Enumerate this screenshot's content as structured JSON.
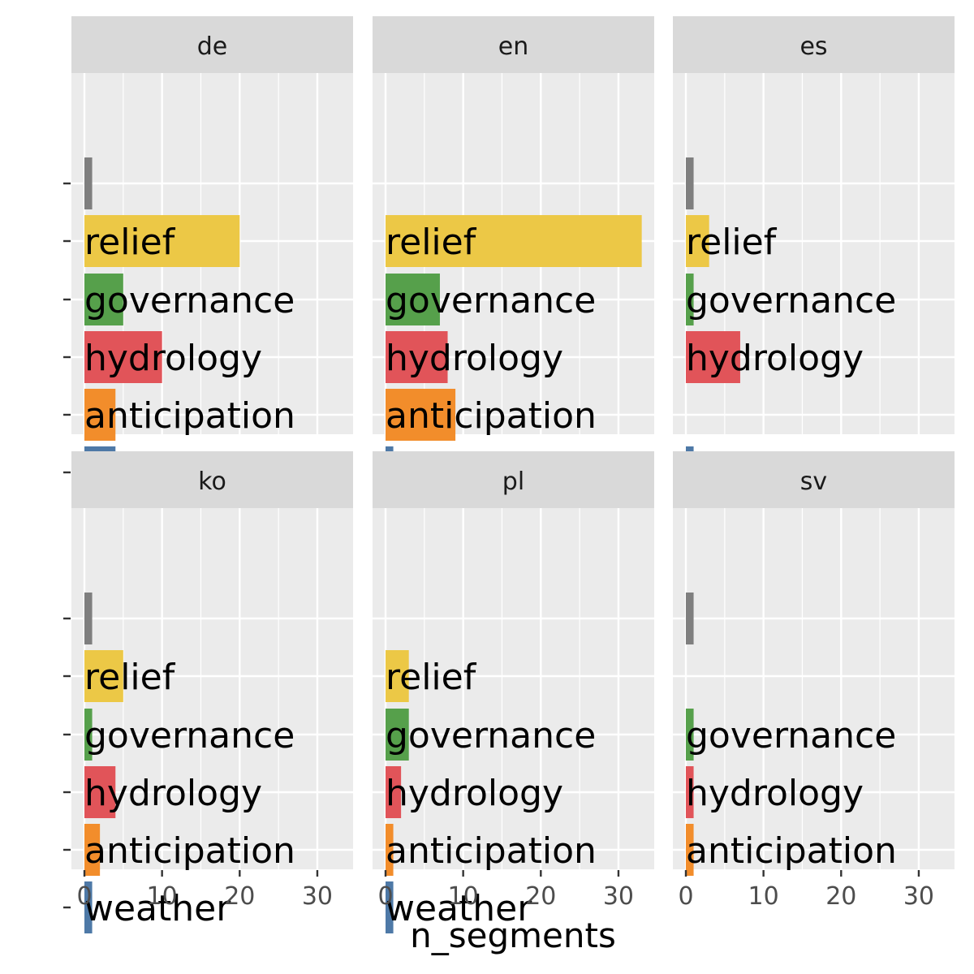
{
  "chart_data": {
    "type": "bar",
    "orientation": "horizontal",
    "facet_layout": "2 rows x 3 columns",
    "xlabel": "n_segments",
    "ylabel": "",
    "xlim": [
      -1.7,
      34.9
    ],
    "x_ticks": [
      0,
      10,
      20,
      30
    ],
    "x_tick_labels": [
      "0",
      "10",
      "20",
      "30"
    ],
    "grid": true,
    "legend": "none",
    "categories": [
      "",
      "relief",
      "governance",
      "hydrology",
      "anticipation",
      "weather"
    ],
    "y_tick_labels": [
      "",
      "",
      "",
      "",
      "",
      ""
    ],
    "colors": {
      "": "#7f7f7f",
      "relief": "#ecc846",
      "governance": "#56a04b",
      "hydrology": "#e15459",
      "anticipation": "#f28d2b",
      "weather": "#4e79a7"
    },
    "facets": [
      {
        "label": "de",
        "values": [
          1,
          20,
          5,
          10,
          4,
          4
        ]
      },
      {
        "label": "en",
        "values": [
          null,
          33,
          7,
          8,
          9,
          1
        ]
      },
      {
        "label": "es",
        "values": [
          1,
          3,
          1,
          7,
          null,
          1
        ]
      },
      {
        "label": "ko",
        "values": [
          1,
          5,
          1,
          4,
          2,
          1
        ]
      },
      {
        "label": "pl",
        "values": [
          null,
          3,
          3,
          2,
          1,
          1
        ]
      },
      {
        "label": "sv",
        "values": [
          1,
          null,
          1,
          1,
          1,
          null
        ]
      }
    ]
  }
}
